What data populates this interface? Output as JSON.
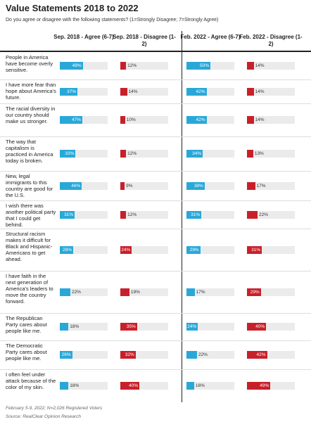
{
  "chart_data": {
    "type": "bar-table",
    "title": "Value Statements 2018 to 2022",
    "subtitle": "Do you agree or disagree with the following statements? (1=Strongly Disagree; 7=Strongly Agree)",
    "categories": [
      "People in America have become overly sensitive.",
      "I have more fear than hope about America's future.",
      "The racial diversity in our country should make us stronger.",
      "The way that capitalism is practiced in America today is broken.",
      "New, legal immigrants to this country are good for the U.S.",
      "I wish there was another political party that I could get behind.",
      "Structural racism makes it difficult for Black and Hispanic-Americans to get ahead.",
      "I have faith in the next generation of America's leaders to move the country forward.",
      "The Republican Party cares about people like me.",
      "The Democratic Party cares about people like me.",
      "I often feel under attack because of the color of my skin."
    ],
    "xlim": [
      0,
      100
    ],
    "series": [
      {
        "name": "Sep. 2018 - Agree (6-7)",
        "color": "#29a8d8",
        "values": [
          48,
          37,
          47,
          33,
          46,
          31,
          28,
          22,
          18,
          26,
          18
        ],
        "value_labels": [
          "48%",
          "37%",
          "47%",
          "33%",
          "46%",
          "31%",
          "28%",
          "22%",
          "18%",
          "26%",
          "18%"
        ]
      },
      {
        "name": "Sep. 2018 - Disagree (1-2)",
        "color": "#c8202a",
        "values": [
          12,
          14,
          10,
          12,
          9,
          12,
          24,
          19,
          35,
          32,
          40
        ],
        "value_labels": [
          "12%",
          "14%",
          "10%",
          "12%",
          "9%",
          "12%",
          "24%",
          "19%",
          "35%",
          "32%",
          "40%"
        ]
      },
      {
        "name": "Feb. 2022 - Agree (6-7)",
        "color": "#29a8d8",
        "values": [
          50,
          42,
          42,
          34,
          38,
          31,
          29,
          17,
          24,
          22,
          16
        ],
        "value_labels": [
          "50%",
          "42%",
          "42%",
          "34%",
          "38%",
          "31%",
          "29%",
          "17%",
          "24%",
          "22%",
          "16%"
        ]
      },
      {
        "name": "Feb. 2022 - Disagree (1-2)",
        "color": "#c8202a",
        "values": [
          14,
          14,
          14,
          13,
          17,
          22,
          31,
          29,
          40,
          42,
          49
        ],
        "value_labels": [
          "14%",
          "14%",
          "14%",
          "13%",
          "17%",
          "22%",
          "31%",
          "29%",
          "40%",
          "42%",
          "49%"
        ]
      }
    ],
    "notes": [
      "February 5-9, 2022; N=2,026 Registered Voters",
      "Source: RealClear Opinion Research"
    ]
  }
}
